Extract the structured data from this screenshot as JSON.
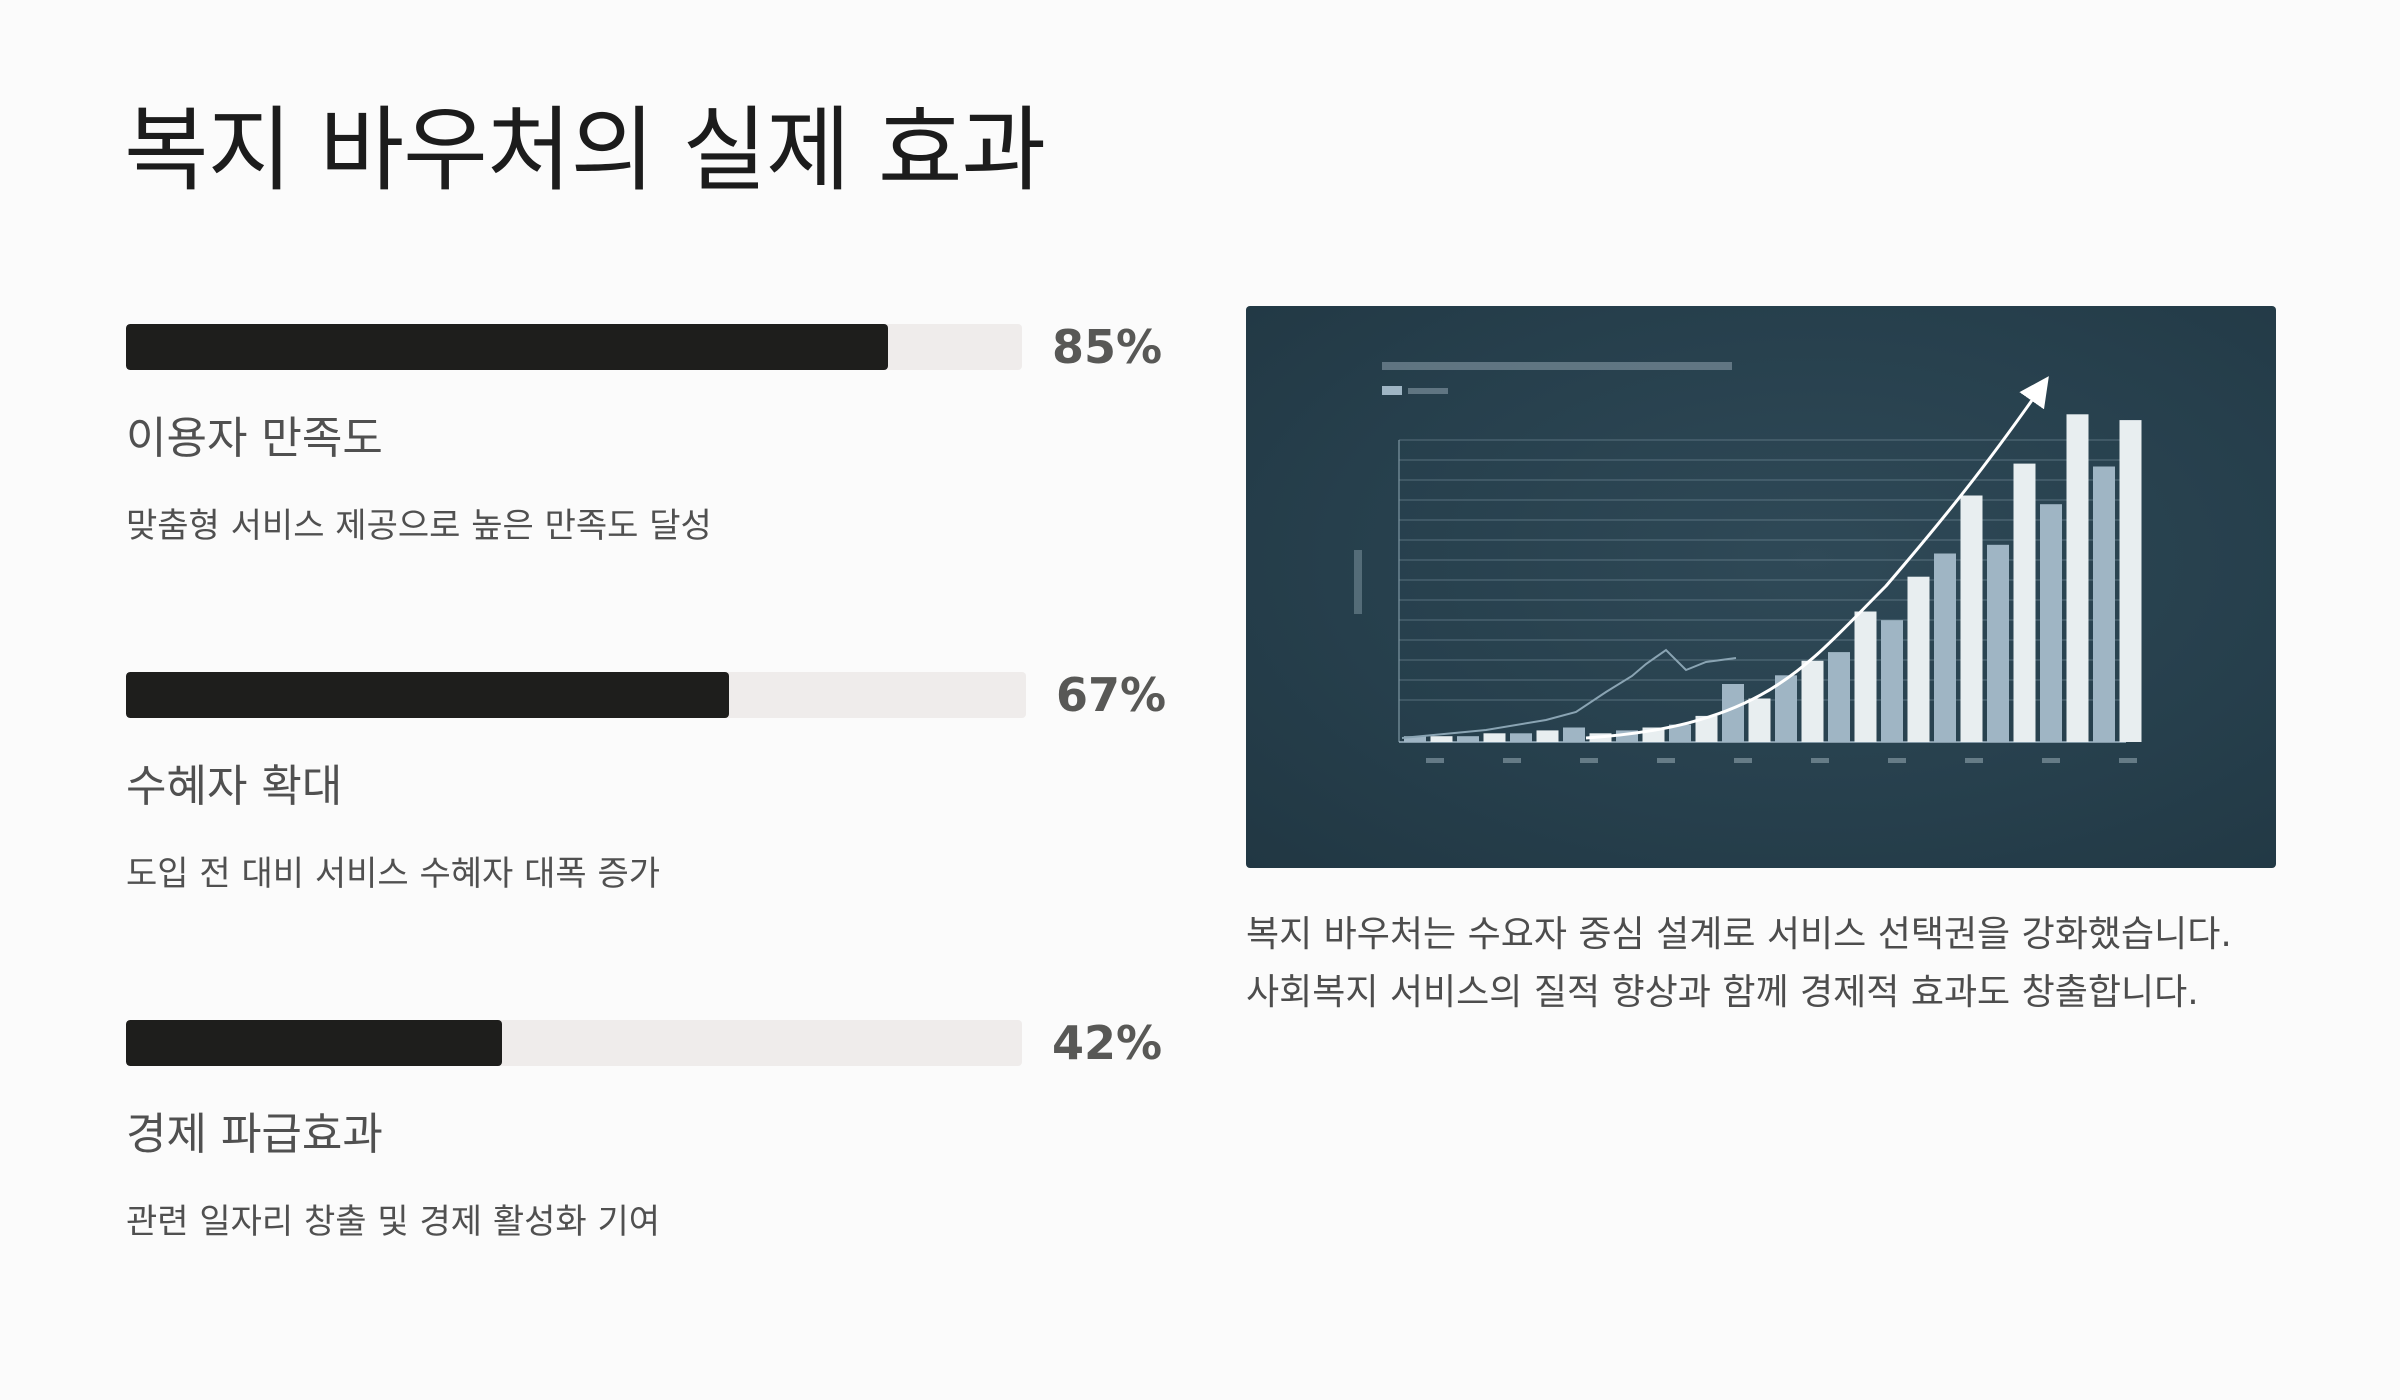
{
  "page": {
    "title": "복지 바우처의 실제 효과"
  },
  "metrics": [
    {
      "percent_label": "85%",
      "value": 0.85,
      "label": "이용자 만족도",
      "description": "맞춤형 서비스 제공으로 높은 만족도 달성"
    },
    {
      "percent_label": "67%",
      "value": 0.67,
      "label": "수혜자 확대",
      "description": "도입 전 대비 서비스 수혜자 대폭 증가"
    },
    {
      "percent_label": "42%",
      "value": 0.42,
      "label": "경제 파급효과",
      "description": "관련 일자리 창출 및 경제 활성화 기여"
    }
  ],
  "summary": "복지 바우처는 수요자 중심 설계로 서비스 선택권을 강화했습니다. 사회복지 서비스의 질적 향상과 함께 경제적 효과도 창출합니다.",
  "chart_image": {
    "kind": "illustration",
    "bar_heights_relative": [
      0.02,
      0.02,
      0.02,
      0.03,
      0.03,
      0.04,
      0.05,
      0.03,
      0.04,
      0.05,
      0.06,
      0.09,
      0.2,
      0.15,
      0.23,
      0.28,
      0.31,
      0.45,
      0.42,
      0.57,
      0.65,
      0.85,
      0.68,
      0.96,
      0.82,
      1.13,
      0.95,
      1.11
    ],
    "colors": {
      "background": "#27404d",
      "bar_light": "#e8eef0",
      "bar_mid": "#9fb5c4",
      "gridline": "#7f97a4",
      "arrow": "#ffffff"
    }
  },
  "colors": {
    "page_background": "#fbfbfb",
    "bar_fill": "#1e1e1c",
    "bar_track": "#efeceb",
    "text_dark": "#1c1c1c",
    "text_muted": "#505050"
  }
}
